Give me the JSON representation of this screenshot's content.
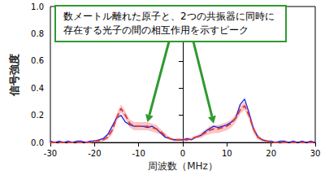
{
  "chart_data": {
    "type": "line",
    "xlabel": "周波数（MHz）",
    "ylabel": "信号強度",
    "xlim": [
      -30,
      30
    ],
    "xticks": [
      -30,
      -20,
      -10,
      0,
      10,
      20,
      30
    ],
    "ylim": [
      0,
      1.0
    ],
    "yticks": [
      {
        "value": 0,
        "label": "0.0"
      },
      0.2,
      0.4,
      0.6,
      0.8,
      {
        "value": 1.0,
        "label": "1.0"
      }
    ],
    "grid": false,
    "annotation": {
      "text_lines": [
        "数メートル離れた原子と、2つの共振器に同時に",
        "存在する光子の間の相互作用を示すピーク"
      ],
      "color": "#2f9a2f",
      "arrow_targets": [
        [
          -8,
          0.15
        ],
        [
          7,
          0.14
        ]
      ]
    },
    "x": [
      -30,
      -29,
      -28,
      -27,
      -26,
      -25,
      -24,
      -23,
      -22,
      -21,
      -20,
      -19,
      -18,
      -17,
      -16,
      -15,
      -14,
      -13,
      -12,
      -11,
      -10,
      -9,
      -8,
      -7,
      -6,
      -5,
      -4,
      -3,
      -2,
      -1,
      0,
      1,
      2,
      3,
      4,
      5,
      6,
      7,
      8,
      9,
      10,
      11,
      12,
      13,
      14,
      15,
      16,
      17,
      18,
      19,
      20,
      21,
      22,
      23,
      24,
      25,
      26,
      27,
      28,
      29,
      30
    ],
    "series": [
      {
        "color": "#1f1fdc",
        "line_style": "solid",
        "values": [
          0.01,
          0.0,
          0.01,
          0.0,
          0.01,
          0.0,
          0.01,
          0.01,
          0.0,
          0.01,
          0.01,
          0.02,
          0.03,
          0.06,
          0.12,
          0.18,
          0.2,
          0.15,
          0.13,
          0.12,
          0.12,
          0.12,
          0.11,
          0.12,
          0.1,
          0.07,
          0.04,
          0.03,
          0.02,
          0.02,
          0.02,
          0.03,
          0.02,
          0.04,
          0.05,
          0.08,
          0.1,
          0.12,
          0.11,
          0.12,
          0.13,
          0.15,
          0.18,
          0.28,
          0.32,
          0.22,
          0.1,
          0.04,
          0.02,
          0.01,
          0.01,
          0.0,
          0.01,
          0.01,
          0.0,
          0.01,
          0.0,
          0.01,
          0.0,
          0.01,
          0.0
        ]
      },
      {
        "color": "#e03a3a",
        "line_style": "dashed",
        "values": [
          0.0,
          0.0,
          0.0,
          0.0,
          0.0,
          0.0,
          0.0,
          0.0,
          0.0,
          0.0,
          0.01,
          0.01,
          0.02,
          0.04,
          0.09,
          0.18,
          0.25,
          0.2,
          0.14,
          0.12,
          0.12,
          0.12,
          0.12,
          0.11,
          0.1,
          0.08,
          0.05,
          0.03,
          0.02,
          0.02,
          0.02,
          0.02,
          0.03,
          0.04,
          0.05,
          0.07,
          0.09,
          0.1,
          0.1,
          0.11,
          0.12,
          0.14,
          0.18,
          0.24,
          0.27,
          0.2,
          0.1,
          0.04,
          0.02,
          0.01,
          0.0,
          0.0,
          0.0,
          0.0,
          0.0,
          0.0,
          0.0,
          0.0,
          0.0,
          0.0,
          0.0
        ],
        "band_color": "#f2a0a0",
        "band_upper": [
          0.01,
          0.01,
          0.01,
          0.01,
          0.01,
          0.01,
          0.01,
          0.01,
          0.01,
          0.01,
          0.02,
          0.02,
          0.03,
          0.06,
          0.12,
          0.21,
          0.28,
          0.23,
          0.17,
          0.15,
          0.15,
          0.15,
          0.15,
          0.14,
          0.13,
          0.1,
          0.07,
          0.04,
          0.03,
          0.03,
          0.03,
          0.03,
          0.04,
          0.05,
          0.07,
          0.09,
          0.12,
          0.13,
          0.13,
          0.14,
          0.15,
          0.17,
          0.21,
          0.27,
          0.3,
          0.23,
          0.13,
          0.06,
          0.03,
          0.02,
          0.01,
          0.01,
          0.01,
          0.01,
          0.01,
          0.01,
          0.01,
          0.01,
          0.01,
          0.01,
          0.01
        ],
        "band_lower": [
          0.0,
          0.0,
          0.0,
          0.0,
          0.0,
          0.0,
          0.0,
          0.0,
          0.0,
          0.0,
          0.0,
          0.0,
          0.01,
          0.02,
          0.06,
          0.15,
          0.22,
          0.17,
          0.11,
          0.09,
          0.09,
          0.09,
          0.09,
          0.08,
          0.07,
          0.06,
          0.03,
          0.02,
          0.01,
          0.01,
          0.01,
          0.01,
          0.02,
          0.03,
          0.03,
          0.05,
          0.06,
          0.07,
          0.07,
          0.08,
          0.09,
          0.11,
          0.15,
          0.21,
          0.24,
          0.17,
          0.07,
          0.02,
          0.01,
          0.0,
          0.0,
          0.0,
          0.0,
          0.0,
          0.0,
          0.0,
          0.0,
          0.0,
          0.0,
          0.0,
          0.0
        ]
      }
    ]
  }
}
